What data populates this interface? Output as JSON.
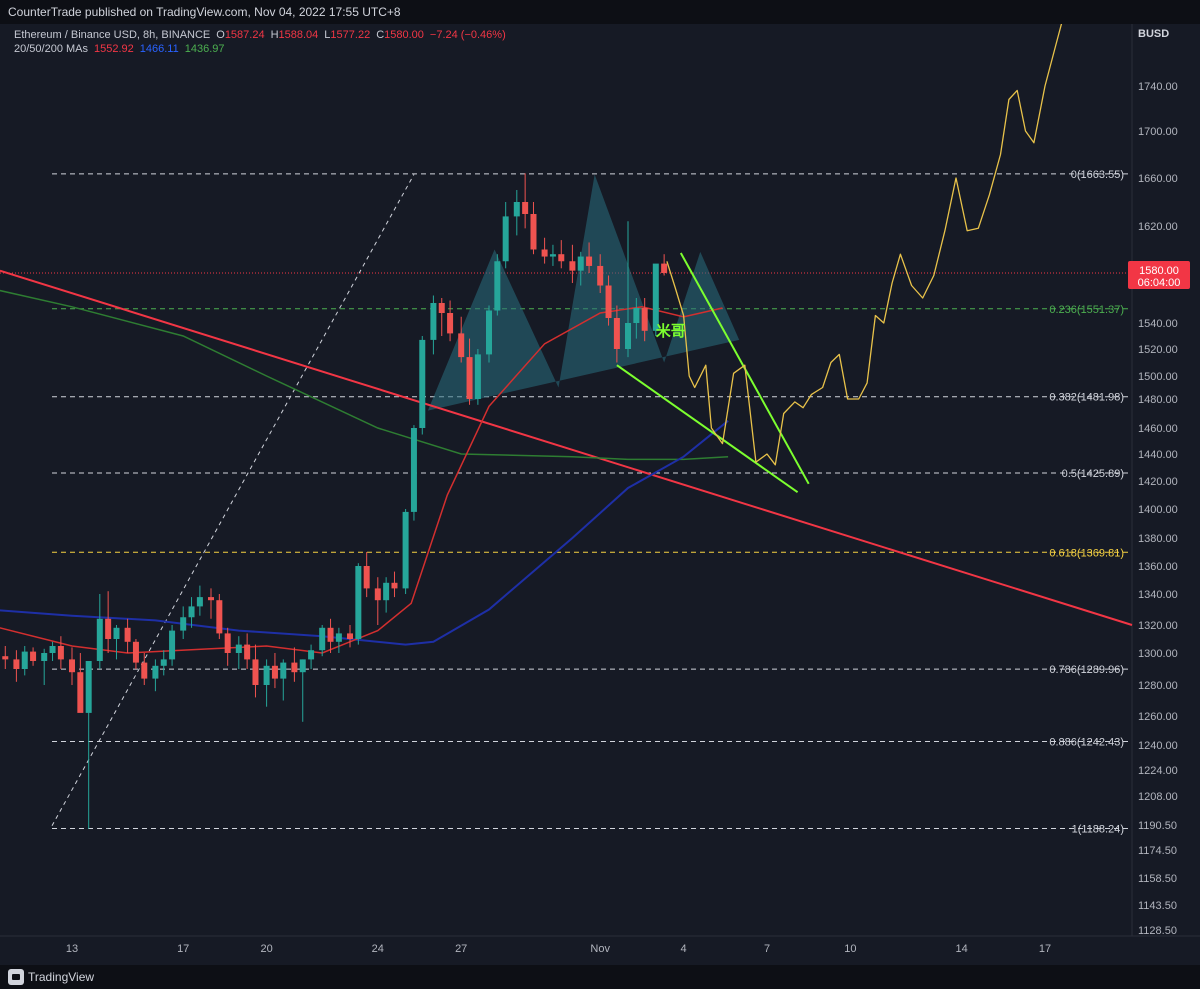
{
  "header": {
    "published": "CounterTrade published on TradingView.com, Nov 04, 2022 17:55 UTC+8"
  },
  "legend": {
    "symbol": "Ethereum / Binance USD, 8h, BINANCE",
    "open_label": "O",
    "open": "1587.24",
    "high_label": "H",
    "high": "1588.04",
    "low_label": "L",
    "low": "1577.22",
    "close_label": "C",
    "close": "1580.00",
    "change": "−7.24 (−0.46%)",
    "ma_label": "20/50/200 MAs",
    "ma20": "1552.92",
    "ma50": "1466.11",
    "ma200": "1436.97"
  },
  "footer": {
    "brand": "TradingView"
  },
  "colors": {
    "background": "#161a25",
    "up": "#26a69a",
    "down": "#ef5350",
    "ma20": "#d32f2f",
    "ma50": "#1e2fa6",
    "ma200": "#2e7d32",
    "fib_white": "#d1d4dc",
    "fib_green": "#4caf50",
    "fib_gold": "#f5d142",
    "trendline": "#f23645",
    "wedge": "#7cff2f",
    "projection": "#e8c24a",
    "triangle": "#2a6f7f"
  },
  "chart_data": {
    "type": "candlestick",
    "y_axis_title": "BUSD",
    "ylim": [
      1113,
      1790
    ],
    "y_ticks": [
      1740,
      1700,
      1660,
      1620,
      1580,
      1540,
      1520,
      1500,
      1480,
      1460,
      1440,
      1420,
      1400,
      1380,
      1360,
      1340,
      1320,
      1300,
      1280,
      1260,
      1240,
      1224,
      1208,
      1190.5,
      1174.5,
      1158.5,
      1143.5,
      1128.5
    ],
    "x_ticks": [
      "13",
      "17",
      "20",
      "24",
      "27",
      "Nov",
      "4",
      "7",
      "10",
      "14",
      "17"
    ],
    "x_domain": [
      "Oct 12",
      "Nov 18"
    ],
    "last_price": "1580.00",
    "countdown": "06:04:00",
    "fib_levels": [
      {
        "ratio": "0",
        "price": 1663.55,
        "label": "0(1663.55)",
        "color": "white"
      },
      {
        "ratio": "0.236",
        "price": 1551.37,
        "label": "0.236(1551.37)",
        "color": "green"
      },
      {
        "ratio": "0.382",
        "price": 1481.98,
        "label": "0.382(1481.98)",
        "color": "white"
      },
      {
        "ratio": "0.5",
        "price": 1425.89,
        "label": "0.5(1425.89)",
        "color": "white"
      },
      {
        "ratio": "0.618",
        "price": 1369.81,
        "label": "0.618(1369.81)",
        "color": "gold"
      },
      {
        "ratio": "0.786",
        "price": 1289.96,
        "label": "0.786(1289.96)",
        "color": "white"
      },
      {
        "ratio": "0.886",
        "price": 1242.43,
        "label": "0.886(1242.43)",
        "color": "white"
      },
      {
        "ratio": "1",
        "price": 1188.24,
        "label": "1(1188.24)",
        "color": "white"
      }
    ],
    "annotation": "米哥"
  }
}
